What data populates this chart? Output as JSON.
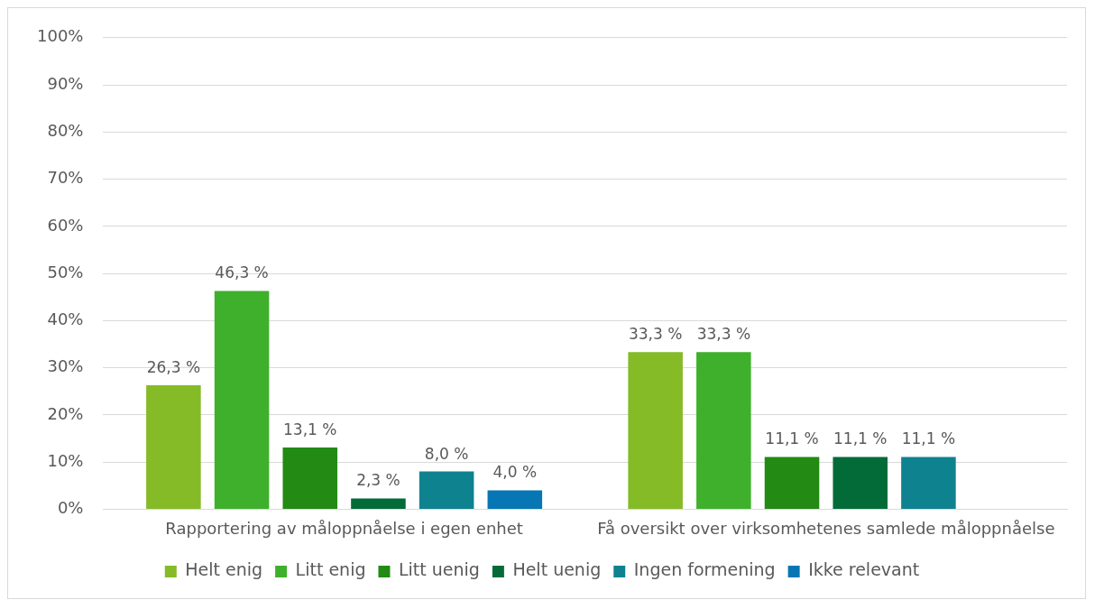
{
  "chart_data": {
    "type": "bar",
    "categories": [
      "Rapportering av måloppnåelse i egen enhet",
      "Få oversikt over virksomhetenes samlede måloppnåelse"
    ],
    "series": [
      {
        "name": "Helt enig",
        "color": "#84bb27",
        "values": [
          26.3,
          33.3
        ],
        "value_labels": [
          "26,3 %",
          "33,3 %"
        ]
      },
      {
        "name": "Litt enig",
        "color": "#3fb02c",
        "values": [
          46.3,
          33.3
        ],
        "value_labels": [
          "46,3 %",
          "33,3 %"
        ]
      },
      {
        "name": "Litt uenig",
        "color": "#238a13",
        "values": [
          13.1,
          11.1
        ],
        "value_labels": [
          "13,1 %",
          "11,1 %"
        ]
      },
      {
        "name": "Helt uenig",
        "color": "#036b38",
        "values": [
          2.3,
          11.1
        ],
        "value_labels": [
          "2,3 %",
          "11,1 %"
        ]
      },
      {
        "name": "Ingen formening",
        "color": "#0f8290",
        "values": [
          8.0,
          11.1
        ],
        "value_labels": [
          "8,0 %",
          "11,1 %"
        ]
      },
      {
        "name": "Ikke relevant",
        "color": "#0676b4",
        "values": [
          4.0,
          null
        ],
        "value_labels": [
          "4,0 %",
          null
        ]
      }
    ],
    "ylim": [
      0,
      100
    ],
    "yticks": [
      {
        "value": 0,
        "label": "0%"
      },
      {
        "value": 10,
        "label": "10%"
      },
      {
        "value": 20,
        "label": "20%"
      },
      {
        "value": 30,
        "label": "30%"
      },
      {
        "value": 40,
        "label": "40%"
      },
      {
        "value": 50,
        "label": "50%"
      },
      {
        "value": 60,
        "label": "60%"
      },
      {
        "value": 70,
        "label": "70%"
      },
      {
        "value": 80,
        "label": "80%"
      },
      {
        "value": 90,
        "label": "90%"
      },
      {
        "value": 100,
        "label": "100%"
      }
    ],
    "grid": "y",
    "legend": "bottom"
  }
}
